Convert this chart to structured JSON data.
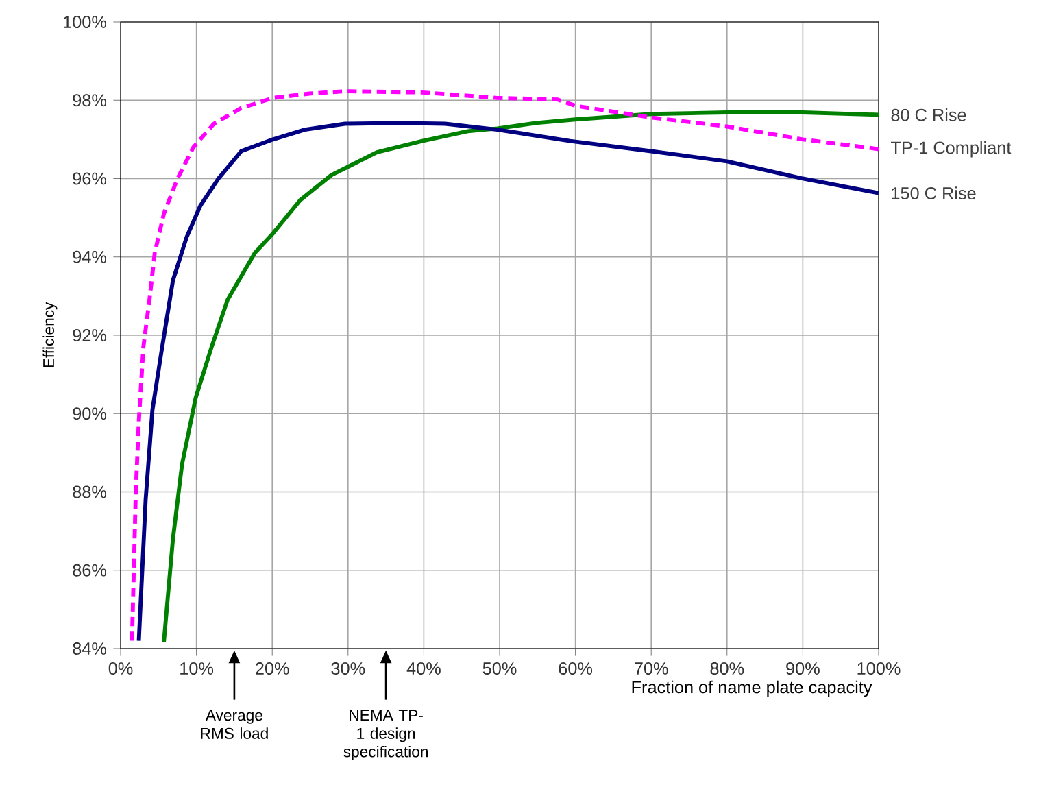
{
  "chart_data": {
    "type": "line",
    "ylabel": "Efficiency",
    "xlabel": "Fraction of name plate capacity",
    "xlim": [
      0,
      100
    ],
    "ylim": [
      84,
      100
    ],
    "xticks": [
      {
        "value": 0,
        "label": "0%"
      },
      {
        "value": 10,
        "label": "10%"
      },
      {
        "value": 20,
        "label": "20%"
      },
      {
        "value": 30,
        "label": "30%"
      },
      {
        "value": 40,
        "label": "40%"
      },
      {
        "value": 50,
        "label": "50%"
      },
      {
        "value": 60,
        "label": "60%"
      },
      {
        "value": 70,
        "label": "70%"
      },
      {
        "value": 80,
        "label": "80%"
      },
      {
        "value": 90,
        "label": "90%"
      },
      {
        "value": 100,
        "label": "100%"
      }
    ],
    "yticks": [
      {
        "value": 84,
        "label": "84%"
      },
      {
        "value": 86,
        "label": "86%"
      },
      {
        "value": 88,
        "label": "88%"
      },
      {
        "value": 90,
        "label": "90%"
      },
      {
        "value": 92,
        "label": "92%"
      },
      {
        "value": 94,
        "label": "94%"
      },
      {
        "value": 96,
        "label": "96%"
      },
      {
        "value": 98,
        "label": "98%"
      },
      {
        "value": 100,
        "label": "100%"
      }
    ],
    "grid": true,
    "legend": false,
    "marker": "none",
    "annotations": [
      "Average RMS load",
      "NEMA TP-1 design specification"
    ],
    "series": [
      {
        "name": "80 C Rise",
        "color": "#008000",
        "line_style": "solid",
        "x": [
          5.7,
          6.9,
          8.1,
          9.9,
          12.0,
          14.1,
          17.7,
          20.1,
          23.7,
          27.8,
          33.8,
          39.8,
          45.8,
          49.7,
          54.8,
          60,
          70,
          80,
          90,
          100
        ],
        "values": [
          84.16,
          86.8,
          88.7,
          90.4,
          91.7,
          92.9,
          94.1,
          94.6,
          95.45,
          96.09,
          96.67,
          96.96,
          97.21,
          97.28,
          97.42,
          97.51,
          97.65,
          97.69,
          97.69,
          97.63
        ]
      },
      {
        "name": "TP-1 Compliant",
        "color": "#ff00ff",
        "line_style": "dashed",
        "x": [
          1.5,
          2.0,
          2.4,
          3.0,
          3.8,
          4.5,
          5.7,
          7.5,
          9.6,
          12.3,
          15.9,
          20.1,
          24.9,
          29.6,
          39.8,
          49.7,
          57.6,
          60,
          70,
          80,
          90,
          99,
          100
        ],
        "values": [
          84.2,
          88.0,
          89.8,
          91.7,
          92.9,
          94.1,
          95.1,
          96.0,
          96.8,
          97.4,
          97.8,
          98.06,
          98.17,
          98.23,
          98.2,
          98.06,
          98.02,
          97.86,
          97.56,
          97.33,
          97.0,
          96.78,
          96.75
        ]
      },
      {
        "name": "150 C Rise",
        "color": "#000080",
        "line_style": "solid",
        "x": [
          2.4,
          3.3,
          4.2,
          5.4,
          6.9,
          8.7,
          10.5,
          12.9,
          15.9,
          20.1,
          24.3,
          29.6,
          36.8,
          42.8,
          49.7,
          59.3,
          70,
          80,
          90,
          100
        ],
        "values": [
          84.2,
          87.8,
          90.1,
          91.6,
          93.4,
          94.5,
          95.3,
          96.0,
          96.7,
          97.0,
          97.25,
          97.4,
          97.42,
          97.4,
          97.25,
          96.96,
          96.7,
          96.44,
          96.0,
          95.63
        ]
      }
    ]
  }
}
